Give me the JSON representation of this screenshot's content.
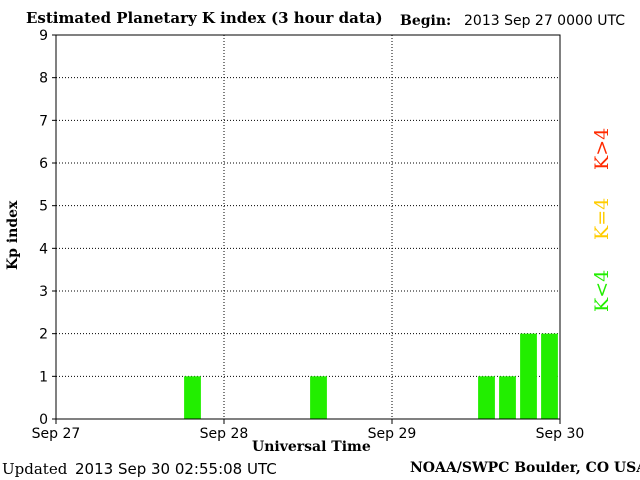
{
  "header": {
    "title": "Estimated Planetary K index (3 hour data)",
    "begin_label": "Begin:",
    "begin_value": "2013 Sep 27 0000 UTC"
  },
  "footer": {
    "updated_label": "Updated",
    "updated_value": "2013 Sep 30 02:55:08 UTC",
    "credit": "NOAA/SWPC Boulder, CO USA"
  },
  "legend": {
    "items": [
      {
        "label": "K>4",
        "color": "#ff2a00"
      },
      {
        "label": "K=4",
        "color": "#ffcc00"
      },
      {
        "label": "K<4",
        "color": "#22ee00"
      }
    ]
  },
  "chart_data": {
    "type": "bar",
    "title": "Estimated Planetary K index (3 hour data)",
    "xlabel": "Universal Time",
    "ylabel": "Kp index",
    "ylim": [
      0,
      9
    ],
    "yticks": [
      0,
      1,
      2,
      3,
      4,
      5,
      6,
      7,
      8,
      9
    ],
    "x_tick_labels": [
      "Sep 27",
      "Sep 28",
      "Sep 29",
      "Sep 30"
    ],
    "grid": true,
    "bar_color": "#22ee00",
    "series": [
      {
        "name": "Kp",
        "points": [
          {
            "time": "2013-09-27 21:00",
            "value": 1
          },
          {
            "time": "2013-09-28 15:00",
            "value": 1
          },
          {
            "time": "2013-09-29 15:00",
            "value": 1
          },
          {
            "time": "2013-09-29 18:00",
            "value": 1
          },
          {
            "time": "2013-09-29 21:00",
            "value": 2
          },
          {
            "time": "2013-09-30 00:00",
            "value": 2
          }
        ]
      }
    ]
  }
}
